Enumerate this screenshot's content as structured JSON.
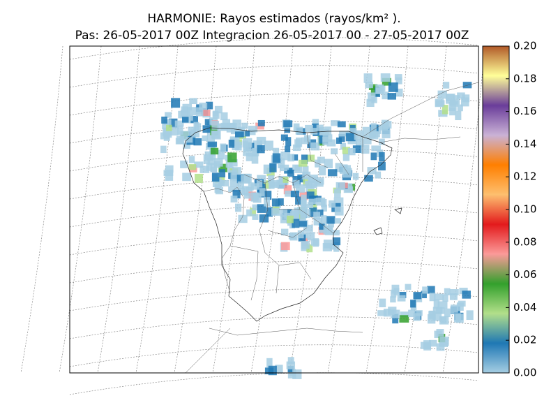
{
  "header": {
    "title": "HARMONIE: Rayos estimados  (rayos/km² ).",
    "subtitle": "Pas: 26-05-2017 00Z Integracion 26-05-2017 00 - 27-05-2017 00Z"
  },
  "colorbar": {
    "lim": [
      0,
      0.2
    ],
    "ticks": [
      {
        "value": 0,
        "label": "0.00"
      },
      {
        "value": 0.02,
        "label": "0.02"
      },
      {
        "value": 0.04,
        "label": "0.04"
      },
      {
        "value": 0.06,
        "label": "0.06"
      },
      {
        "value": 0.08,
        "label": "0.08"
      },
      {
        "value": 0.1,
        "label": "0.10"
      },
      {
        "value": 0.12,
        "label": "0.12"
      },
      {
        "value": 0.14,
        "label": "0.14"
      },
      {
        "value": 0.16,
        "label": "0.16"
      },
      {
        "value": 0.18,
        "label": "0.18"
      },
      {
        "value": 0.2,
        "label": "0.20"
      }
    ],
    "colors": [
      "#a6cee3",
      "#1f78b4",
      "#b2df8a",
      "#33a02c",
      "#fb9a99",
      "#e31a1c",
      "#fdbf6f",
      "#ff7f00",
      "#cab2d6",
      "#6a3d9a",
      "#ffff99",
      "#b15928"
    ]
  }
}
